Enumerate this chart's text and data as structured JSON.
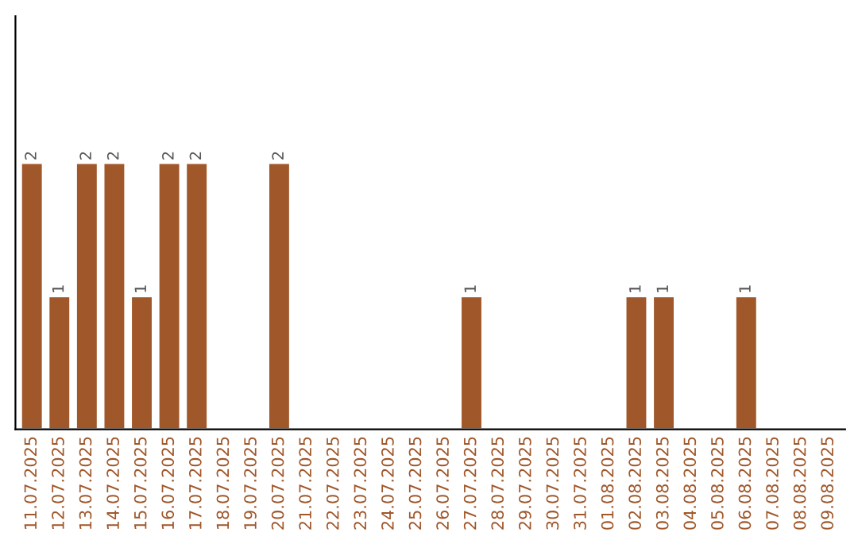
{
  "chart_data": {
    "type": "bar",
    "categories": [
      "11.07.2025",
      "12.07.2025",
      "13.07.2025",
      "14.07.2025",
      "15.07.2025",
      "16.07.2025",
      "17.07.2025",
      "18.07.2025",
      "19.07.2025",
      "20.07.2025",
      "21.07.2025",
      "22.07.2025",
      "23.07.2025",
      "24.07.2025",
      "25.07.2025",
      "26.07.2025",
      "27.07.2025",
      "28.07.2025",
      "29.07.2025",
      "30.07.2025",
      "31.07.2025",
      "01.08.2025",
      "02.08.2025",
      "03.08.2025",
      "04.08.2025",
      "05.08.2025",
      "06.08.2025",
      "07.08.2025",
      "08.08.2025",
      "09.08.2025"
    ],
    "values": [
      2,
      1,
      2,
      2,
      1,
      2,
      2,
      null,
      null,
      2,
      null,
      null,
      null,
      null,
      null,
      null,
      1,
      null,
      null,
      null,
      null,
      null,
      1,
      1,
      null,
      null,
      1,
      null,
      null,
      null
    ],
    "value_labels": [
      "2",
      "1",
      "2",
      "2",
      "1",
      "2",
      "2",
      null,
      null,
      "2",
      null,
      null,
      null,
      null,
      null,
      null,
      "1",
      null,
      null,
      null,
      null,
      null,
      "1",
      "1",
      null,
      null,
      "1",
      null,
      null,
      null
    ],
    "color": "#a0572a",
    "grid": false,
    "legend": false,
    "tick_labels": "x"
  }
}
